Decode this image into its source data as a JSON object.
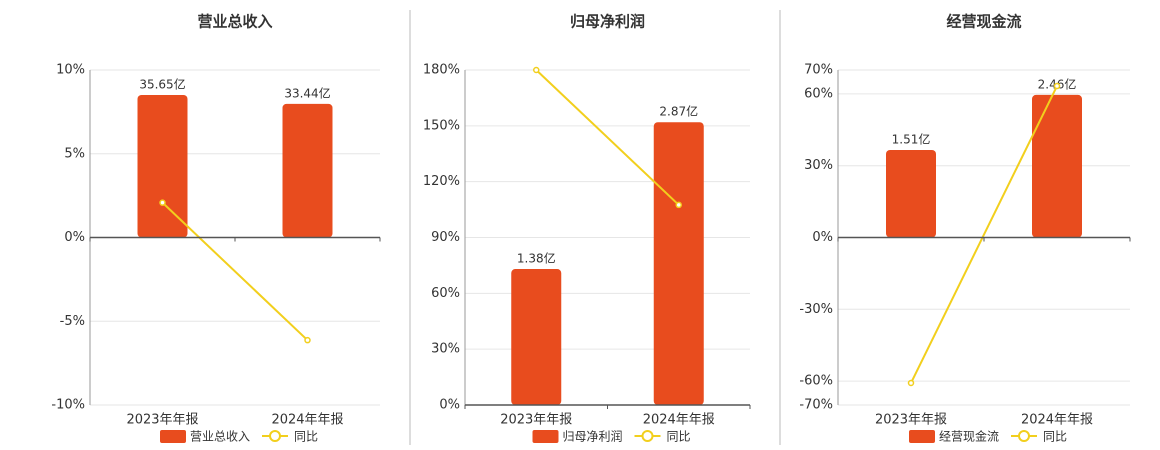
{
  "chart_data": [
    {
      "type": "bar",
      "title": "营业总收入",
      "categories": [
        "2023年年报",
        "2024年年报"
      ],
      "series": [
        {
          "name": "营业总收入",
          "color": "#e84c1e",
          "axis": "y2",
          "values": [
            35.65,
            33.44
          ],
          "value_labels": [
            "35.65亿",
            "33.44亿"
          ]
        },
        {
          "name": "同比",
          "type": "line",
          "color": "#f2cf1d",
          "values": [
            2.08,
            -6.13
          ]
        }
      ],
      "ylim": [
        -10,
        10
      ],
      "yticks": [
        {
          "value": -10,
          "label": "-10%"
        },
        {
          "value": -5,
          "label": "-5%"
        },
        {
          "value": 0,
          "label": "0%"
        },
        {
          "value": 5,
          "label": "5%"
        },
        {
          "value": 10,
          "label": "10%"
        }
      ],
      "y2lim": [
        -41.9,
        41.9
      ],
      "grid": true
    },
    {
      "type": "bar",
      "title": "归母净利润",
      "categories": [
        "2023年年报",
        "2024年年报"
      ],
      "series": [
        {
          "name": "归母净利润",
          "color": "#e84c1e",
          "axis": "y2",
          "values": [
            1.38,
            2.87
          ],
          "value_labels": [
            "1.38亿",
            "2.87亿"
          ]
        },
        {
          "name": "同比",
          "type": "line",
          "color": "#f2cf1d",
          "values": [
            180,
            107.5
          ]
        }
      ],
      "ylim": [
        0,
        180
      ],
      "yticks": [
        {
          "value": 0,
          "label": "0%"
        },
        {
          "value": 30,
          "label": "30%"
        },
        {
          "value": 60,
          "label": "60%"
        },
        {
          "value": 90,
          "label": "90%"
        },
        {
          "value": 120,
          "label": "120%"
        },
        {
          "value": 150,
          "label": "150%"
        },
        {
          "value": 180,
          "label": "180%"
        }
      ],
      "y2lim": [
        0,
        3.4
      ],
      "grid": true
    },
    {
      "type": "bar",
      "title": "经营现金流",
      "categories": [
        "2023年年报",
        "2024年年报"
      ],
      "series": [
        {
          "name": "经营现金流",
          "color": "#e84c1e",
          "axis": "y2",
          "values": [
            1.51,
            2.46
          ],
          "value_labels": [
            "1.51亿",
            "2.46亿"
          ]
        },
        {
          "name": "同比",
          "type": "line",
          "color": "#f2cf1d",
          "values": [
            -60.8,
            63.3
          ]
        }
      ],
      "ylim": [
        -70,
        70
      ],
      "yticks": [
        {
          "value": -70,
          "label": "-70%"
        },
        {
          "value": -60,
          "label": "-60%"
        },
        {
          "value": -30,
          "label": "-30%"
        },
        {
          "value": 0,
          "label": "0%"
        },
        {
          "value": 30,
          "label": "30%"
        },
        {
          "value": 60,
          "label": "60%"
        },
        {
          "value": 70,
          "label": "70%"
        }
      ],
      "y2lim": [
        -2.89,
        2.89
      ],
      "grid": true
    }
  ]
}
